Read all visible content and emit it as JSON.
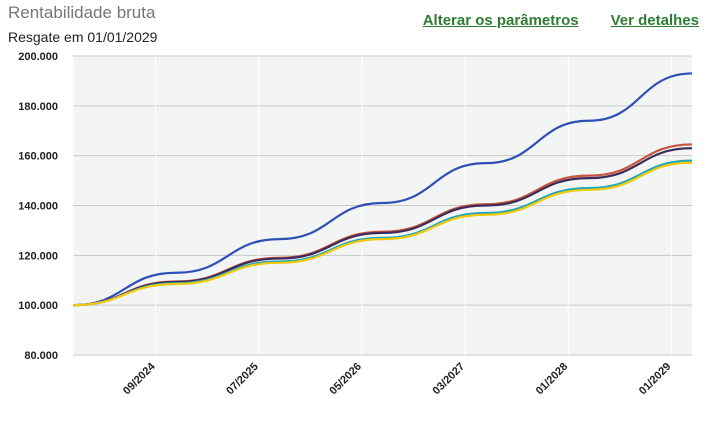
{
  "header": {
    "title": "Rentabilidade bruta",
    "subtitle": "Resgate em 01/01/2029",
    "link_params": "Alterar os parâmetros",
    "link_details": "Ver detalhes"
  },
  "chart_data": {
    "type": "line",
    "ylim": [
      80000,
      200000
    ],
    "yticks": [
      80000,
      100000,
      120000,
      140000,
      160000,
      180000,
      200000
    ],
    "ytick_labels": [
      "80.000",
      "100.000",
      "120.000",
      "140.000",
      "160.000",
      "180.000",
      "200.000"
    ],
    "xlim_months": [
      0,
      60
    ],
    "x": [
      0,
      10,
      20,
      30,
      40,
      50,
      60
    ],
    "xticks_at": [
      8,
      18,
      28,
      38,
      48,
      58
    ],
    "xtick_labels": [
      "09/2024",
      "07/2025",
      "05/2026",
      "03/2027",
      "01/2028",
      "01/2029"
    ],
    "grid": true,
    "series": [
      {
        "color": "#2f4fb5",
        "values": [
          100000,
          113000,
          126500,
          141000,
          157000,
          174000,
          193000
        ]
      },
      {
        "color": "#c8553d",
        "values": [
          100000,
          109500,
          119000,
          129500,
          140500,
          152000,
          164500
        ]
      },
      {
        "color": "#3b2a5c",
        "values": [
          100000,
          109300,
          118700,
          129000,
          140000,
          151000,
          163000
        ]
      },
      {
        "color": "#1aa6b7",
        "values": [
          100000,
          108800,
          117500,
          127000,
          137000,
          147000,
          158000
        ]
      },
      {
        "color": "#f2c80f",
        "values": [
          100000,
          108500,
          117000,
          126500,
          136300,
          146300,
          157200
        ]
      }
    ]
  }
}
